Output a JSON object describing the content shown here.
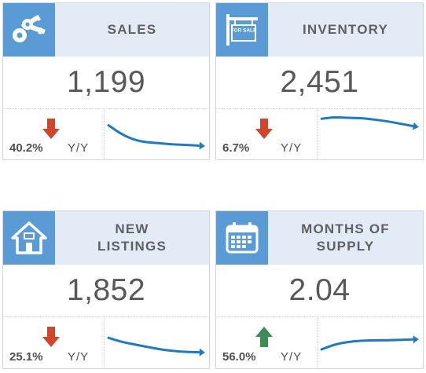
{
  "colors": {
    "icon_bg": "#5b9bd5",
    "header_bg": "#e3ebf7",
    "down_arrow": "#d0462a",
    "up_arrow": "#3d8c5a",
    "trend_line": "#1f7ac4"
  },
  "cards": [
    {
      "icon": "keys-icon",
      "title": "SALES",
      "value": "1,199",
      "change_pct": "40.2%",
      "change_label": "Y/Y",
      "direction": "down",
      "trend": [
        0.72,
        0.5,
        0.36,
        0.3,
        0.28,
        0.25,
        0.24,
        0.22
      ]
    },
    {
      "icon": "for-sale-sign-icon",
      "sign_text": "FOR SALE",
      "title": "INVENTORY",
      "value": "2,451",
      "change_pct": "6.7%",
      "change_label": "Y/Y",
      "direction": "down",
      "trend": [
        0.88,
        0.92,
        0.9,
        0.9,
        0.86,
        0.82,
        0.76,
        0.7
      ]
    },
    {
      "icon": "house-icon",
      "title": "NEW\nLISTINGS",
      "value": "1,852",
      "change_pct": "25.1%",
      "change_label": "Y/Y",
      "direction": "down",
      "trend": [
        0.62,
        0.52,
        0.46,
        0.4,
        0.34,
        0.3,
        0.28,
        0.27
      ]
    },
    {
      "icon": "calendar-icon",
      "title": "MONTHS OF\nSUPPLY",
      "value": "2.04",
      "change_pct": "56.0%",
      "change_label": "Y/Y",
      "direction": "up",
      "trend": [
        0.34,
        0.46,
        0.52,
        0.55,
        0.56,
        0.56,
        0.57,
        0.58
      ]
    }
  ]
}
